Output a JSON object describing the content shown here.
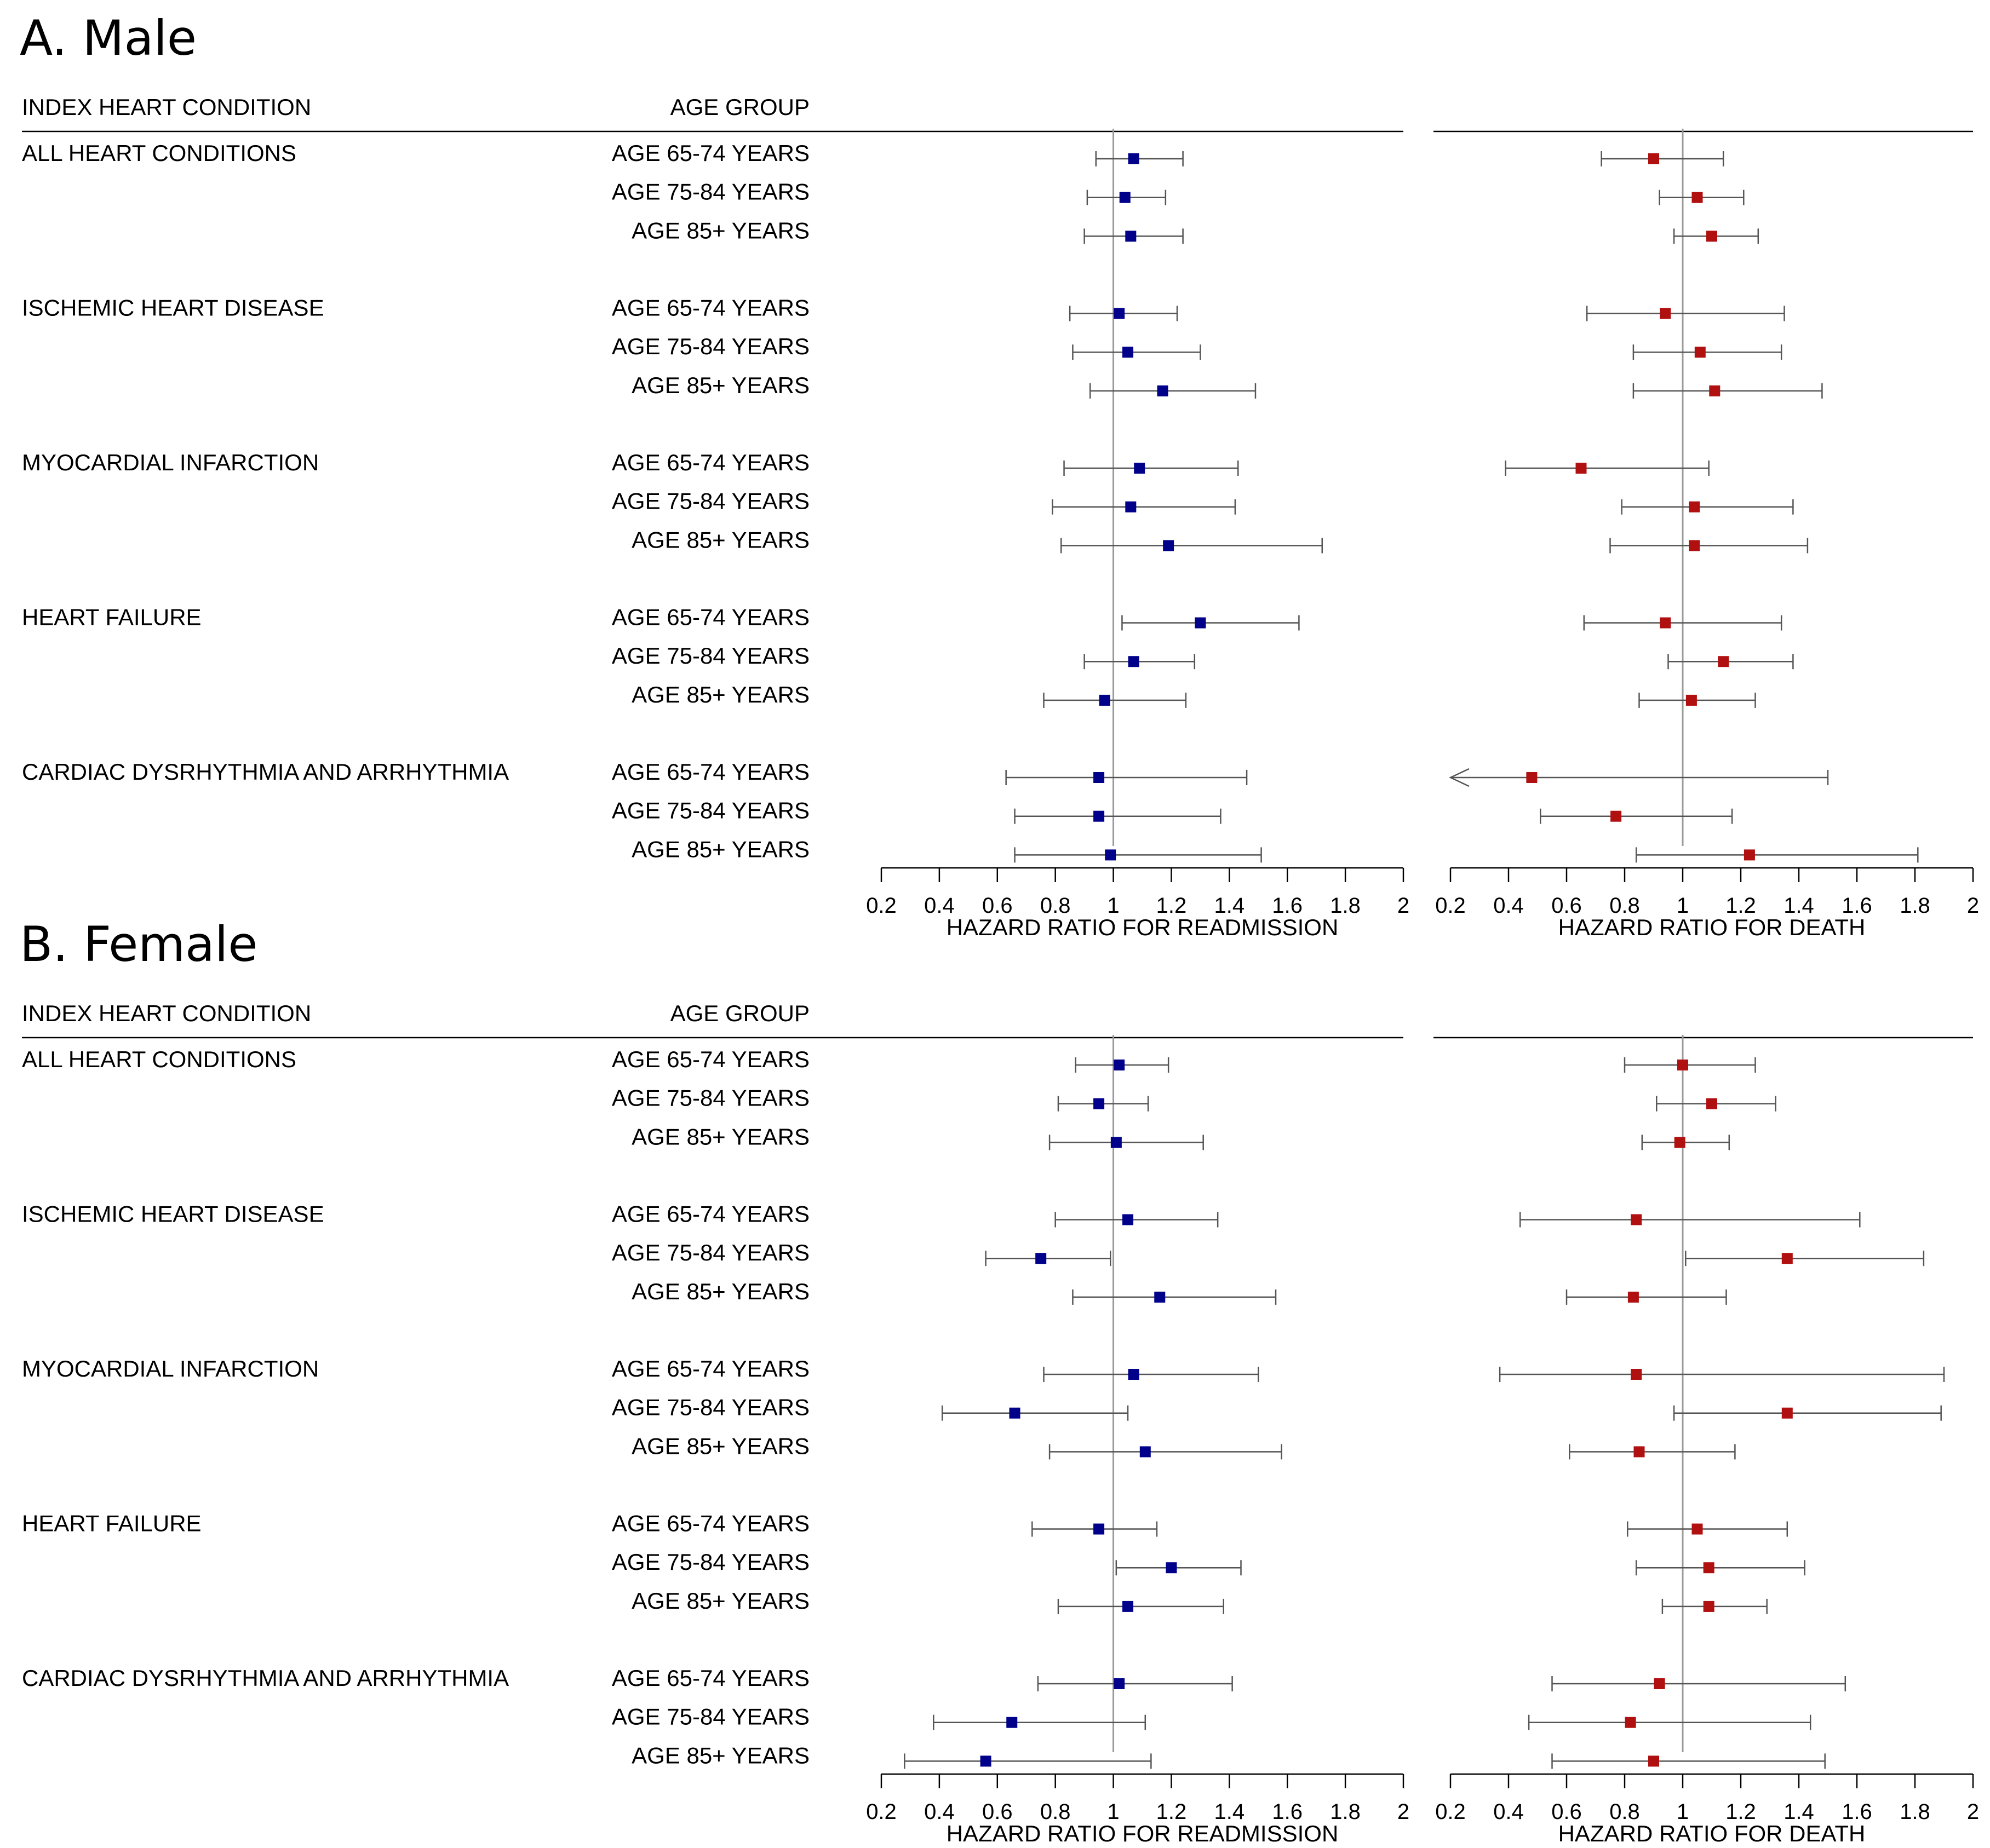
{
  "chart_data": [
    {
      "type": "forest",
      "panel_label": "A.  Male",
      "header": {
        "condition": "INDEX HEART CONDITION",
        "age": "AGE GROUP"
      },
      "conditions": [
        {
          "label": "ALL HEART CONDITIONS",
          "rows": [
            {
              "age": "AGE 65-74 YEARS",
              "readmission": {
                "hr": 1.07,
                "lo": 0.94,
                "hi": 1.24
              },
              "death": {
                "hr": 0.9,
                "lo": 0.72,
                "hi": 1.14
              }
            },
            {
              "age": "AGE 75-84 YEARS",
              "readmission": {
                "hr": 1.04,
                "lo": 0.91,
                "hi": 1.18
              },
              "death": {
                "hr": 1.05,
                "lo": 0.92,
                "hi": 1.21
              }
            },
            {
              "age": "AGE 85+ YEARS",
              "readmission": {
                "hr": 1.06,
                "lo": 0.9,
                "hi": 1.24
              },
              "death": {
                "hr": 1.1,
                "lo": 0.97,
                "hi": 1.26
              }
            }
          ]
        },
        {
          "label": "ISCHEMIC HEART DISEASE",
          "rows": [
            {
              "age": "AGE 65-74 YEARS",
              "readmission": {
                "hr": 1.02,
                "lo": 0.85,
                "hi": 1.22
              },
              "death": {
                "hr": 0.94,
                "lo": 0.67,
                "hi": 1.35
              }
            },
            {
              "age": "AGE 75-84 YEARS",
              "readmission": {
                "hr": 1.05,
                "lo": 0.86,
                "hi": 1.3
              },
              "death": {
                "hr": 1.06,
                "lo": 0.83,
                "hi": 1.34
              }
            },
            {
              "age": "AGE 85+ YEARS",
              "readmission": {
                "hr": 1.17,
                "lo": 0.92,
                "hi": 1.49
              },
              "death": {
                "hr": 1.11,
                "lo": 0.83,
                "hi": 1.48
              }
            }
          ]
        },
        {
          "label": "MYOCARDIAL INFARCTION",
          "rows": [
            {
              "age": "AGE 65-74 YEARS",
              "readmission": {
                "hr": 1.09,
                "lo": 0.83,
                "hi": 1.43
              },
              "death": {
                "hr": 0.65,
                "lo": 0.39,
                "hi": 1.09
              }
            },
            {
              "age": "AGE 75-84 YEARS",
              "readmission": {
                "hr": 1.06,
                "lo": 0.79,
                "hi": 1.42
              },
              "death": {
                "hr": 1.04,
                "lo": 0.79,
                "hi": 1.38
              }
            },
            {
              "age": "AGE 85+ YEARS",
              "readmission": {
                "hr": 1.19,
                "lo": 0.82,
                "hi": 1.72
              },
              "death": {
                "hr": 1.04,
                "lo": 0.75,
                "hi": 1.43
              }
            }
          ]
        },
        {
          "label": "HEART FAILURE",
          "rows": [
            {
              "age": "AGE 65-74 YEARS",
              "readmission": {
                "hr": 1.3,
                "lo": 1.03,
                "hi": 1.64
              },
              "death": {
                "hr": 0.94,
                "lo": 0.66,
                "hi": 1.34
              }
            },
            {
              "age": "AGE 75-84 YEARS",
              "readmission": {
                "hr": 1.07,
                "lo": 0.9,
                "hi": 1.28
              },
              "death": {
                "hr": 1.14,
                "lo": 0.95,
                "hi": 1.38
              }
            },
            {
              "age": "AGE 85+ YEARS",
              "readmission": {
                "hr": 0.97,
                "lo": 0.76,
                "hi": 1.25
              },
              "death": {
                "hr": 1.03,
                "lo": 0.85,
                "hi": 1.25
              }
            }
          ]
        },
        {
          "label": "CARDIAC DYSRHYTHMIA AND ARRHYTHMIA",
          "rows": [
            {
              "age": "AGE 65-74 YEARS",
              "readmission": {
                "hr": 0.95,
                "lo": 0.63,
                "hi": 1.46
              },
              "death": {
                "hr": 0.48,
                "lo": 0.2,
                "hi": 1.5,
                "lo_clipped": true
              }
            },
            {
              "age": "AGE 75-84 YEARS",
              "readmission": {
                "hr": 0.95,
                "lo": 0.66,
                "hi": 1.37
              },
              "death": {
                "hr": 0.77,
                "lo": 0.51,
                "hi": 1.17
              }
            },
            {
              "age": "AGE 85+ YEARS",
              "readmission": {
                "hr": 0.99,
                "lo": 0.66,
                "hi": 1.51
              },
              "death": {
                "hr": 1.23,
                "lo": 0.84,
                "hi": 1.81
              }
            }
          ]
        }
      ],
      "axes": [
        {
          "xlabel": "HAZARD RATIO FOR READMISSION",
          "xlim": [
            0.2,
            2
          ],
          "ticks": [
            "0.2",
            "0.4",
            "0.6",
            "0.8",
            "1",
            "1.2",
            "1.4",
            "1.6",
            "1.8",
            "2"
          ],
          "ref_line": 1,
          "marker_color": "#00008b"
        },
        {
          "xlabel": "HAZARD RATIO FOR DEATH",
          "xlim": [
            0.2,
            2
          ],
          "ticks": [
            "0.2",
            "0.4",
            "0.6",
            "0.8",
            "1",
            "1.2",
            "1.4",
            "1.6",
            "1.8",
            "2"
          ],
          "ref_line": 1,
          "marker_color": "#b01010"
        }
      ]
    },
    {
      "type": "forest",
      "panel_label": "B.  Female",
      "header": {
        "condition": "INDEX HEART CONDITION",
        "age": "AGE GROUP"
      },
      "conditions": [
        {
          "label": "ALL HEART CONDITIONS",
          "rows": [
            {
              "age": "AGE 65-74 YEARS",
              "readmission": {
                "hr": 1.02,
                "lo": 0.87,
                "hi": 1.19
              },
              "death": {
                "hr": 1.0,
                "lo": 0.8,
                "hi": 1.25
              }
            },
            {
              "age": "AGE 75-84 YEARS",
              "readmission": {
                "hr": 0.95,
                "lo": 0.81,
                "hi": 1.12
              },
              "death": {
                "hr": 1.1,
                "lo": 0.91,
                "hi": 1.32
              }
            },
            {
              "age": "AGE 85+ YEARS",
              "readmission": {
                "hr": 1.01,
                "lo": 0.78,
                "hi": 1.31
              },
              "death": {
                "hr": 0.99,
                "lo": 0.86,
                "hi": 1.16
              }
            }
          ]
        },
        {
          "label": "ISCHEMIC HEART DISEASE",
          "rows": [
            {
              "age": "AGE 65-74 YEARS",
              "readmission": {
                "hr": 1.05,
                "lo": 0.8,
                "hi": 1.36
              },
              "death": {
                "hr": 0.84,
                "lo": 0.44,
                "hi": 1.61
              }
            },
            {
              "age": "AGE 75-84 YEARS",
              "readmission": {
                "hr": 0.75,
                "lo": 0.56,
                "hi": 0.99
              },
              "death": {
                "hr": 1.36,
                "lo": 1.01,
                "hi": 1.83
              }
            },
            {
              "age": "AGE 85+ YEARS",
              "readmission": {
                "hr": 1.16,
                "lo": 0.86,
                "hi": 1.56
              },
              "death": {
                "hr": 0.83,
                "lo": 0.6,
                "hi": 1.15
              }
            }
          ]
        },
        {
          "label": "MYOCARDIAL INFARCTION",
          "rows": [
            {
              "age": "AGE 65-74 YEARS",
              "readmission": {
                "hr": 1.07,
                "lo": 0.76,
                "hi": 1.5
              },
              "death": {
                "hr": 0.84,
                "lo": 0.37,
                "hi": 1.9
              }
            },
            {
              "age": "AGE 75-84 YEARS",
              "readmission": {
                "hr": 0.66,
                "lo": 0.41,
                "hi": 1.05
              },
              "death": {
                "hr": 1.36,
                "lo": 0.97,
                "hi": 1.89
              }
            },
            {
              "age": "AGE 85+ YEARS",
              "readmission": {
                "hr": 1.11,
                "lo": 0.78,
                "hi": 1.58
              },
              "death": {
                "hr": 0.85,
                "lo": 0.61,
                "hi": 1.18
              }
            }
          ]
        },
        {
          "label": "HEART FAILURE",
          "rows": [
            {
              "age": "AGE 65-74 YEARS",
              "readmission": {
                "hr": 0.95,
                "lo": 0.72,
                "hi": 1.15
              },
              "death": {
                "hr": 1.05,
                "lo": 0.81,
                "hi": 1.36
              }
            },
            {
              "age": "AGE 75-84 YEARS",
              "readmission": {
                "hr": 1.2,
                "lo": 1.01,
                "hi": 1.44
              },
              "death": {
                "hr": 1.09,
                "lo": 0.84,
                "hi": 1.42
              }
            },
            {
              "age": "AGE 85+ YEARS",
              "readmission": {
                "hr": 1.05,
                "lo": 0.81,
                "hi": 1.38
              },
              "death": {
                "hr": 1.09,
                "lo": 0.93,
                "hi": 1.29
              }
            }
          ]
        },
        {
          "label": "CARDIAC DYSRHYTHMIA AND ARRHYTHMIA",
          "rows": [
            {
              "age": "AGE 65-74 YEARS",
              "readmission": {
                "hr": 1.02,
                "lo": 0.74,
                "hi": 1.41
              },
              "death": {
                "hr": 0.92,
                "lo": 0.55,
                "hi": 1.56
              }
            },
            {
              "age": "AGE 75-84 YEARS",
              "readmission": {
                "hr": 0.65,
                "lo": 0.38,
                "hi": 1.11
              },
              "death": {
                "hr": 0.82,
                "lo": 0.47,
                "hi": 1.44
              }
            },
            {
              "age": "AGE 85+ YEARS",
              "readmission": {
                "hr": 0.56,
                "lo": 0.28,
                "hi": 1.13
              },
              "death": {
                "hr": 0.9,
                "lo": 0.55,
                "hi": 1.49
              }
            }
          ]
        }
      ],
      "axes": [
        {
          "xlabel": "HAZARD RATIO FOR READMISSION",
          "xlim": [
            0.2,
            2
          ],
          "ticks": [
            "0.2",
            "0.4",
            "0.6",
            "0.8",
            "1",
            "1.2",
            "1.4",
            "1.6",
            "1.8",
            "2"
          ],
          "ref_line": 1,
          "marker_color": "#00008b"
        },
        {
          "xlabel": "HAZARD RATIO FOR DEATH",
          "xlim": [
            0.2,
            2
          ],
          "ticks": [
            "0.2",
            "0.4",
            "0.6",
            "0.8",
            "1",
            "1.2",
            "1.4",
            "1.6",
            "1.8",
            "2"
          ],
          "ref_line": 1,
          "marker_color": "#b01010"
        }
      ]
    }
  ]
}
